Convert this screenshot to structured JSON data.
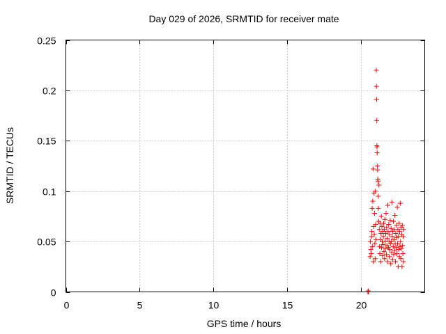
{
  "chart_data": {
    "type": "scatter",
    "title": "Day 029 of 2026, SRMTID for receiver mate",
    "xlabel": "GPS time / hours",
    "ylabel": "SRMTID / TECUs",
    "xlim": [
      0,
      24.3
    ],
    "ylim": [
      0,
      0.25
    ],
    "xticks": [
      0,
      5,
      10,
      15,
      20
    ],
    "xtick_labels": [
      "0",
      "5",
      "10",
      "15",
      "20"
    ],
    "yticks": [
      0,
      0.05,
      0.1,
      0.15,
      0.2,
      0.25
    ],
    "ytick_labels": [
      "0",
      "0.05",
      "0.1",
      "0.15",
      "0.2",
      "0.25"
    ],
    "grid": true,
    "marker": "+",
    "series": [
      {
        "name": "SRMTID",
        "color": "#ff0000",
        "points": [
          [
            20.45,
            0.0
          ],
          [
            20.47,
            0.001
          ],
          [
            20.5,
            0.0
          ],
          [
            20.6,
            0.035
          ],
          [
            20.62,
            0.05
          ],
          [
            20.65,
            0.042
          ],
          [
            20.68,
            0.038
          ],
          [
            20.7,
            0.055
          ],
          [
            20.72,
            0.06
          ],
          [
            20.74,
            0.083
          ],
          [
            20.75,
            0.045
          ],
          [
            20.78,
            0.09
          ],
          [
            20.8,
            0.122
          ],
          [
            20.82,
            0.03
          ],
          [
            20.84,
            0.065
          ],
          [
            20.86,
            0.098
          ],
          [
            20.88,
            0.057
          ],
          [
            20.9,
            0.078
          ],
          [
            20.92,
            0.048
          ],
          [
            20.94,
            0.033
          ],
          [
            20.96,
            0.1
          ],
          [
            20.98,
            0.067
          ],
          [
            21.0,
            0.052
          ],
          [
            21.02,
            0.22
          ],
          [
            21.03,
            0.204
          ],
          [
            21.04,
            0.191
          ],
          [
            21.05,
            0.17
          ],
          [
            21.06,
            0.145
          ],
          [
            21.07,
            0.144
          ],
          [
            21.08,
            0.138
          ],
          [
            21.1,
            0.125
          ],
          [
            21.11,
            0.121
          ],
          [
            21.12,
            0.112
          ],
          [
            21.14,
            0.11
          ],
          [
            21.15,
            0.095
          ],
          [
            21.16,
            0.083
          ],
          [
            21.18,
            0.07
          ],
          [
            21.2,
            0.106
          ],
          [
            21.22,
            0.062
          ],
          [
            21.24,
            0.045
          ],
          [
            21.26,
            0.038
          ],
          [
            21.28,
            0.068
          ],
          [
            21.3,
            0.052
          ],
          [
            21.32,
            0.03
          ],
          [
            21.34,
            0.058
          ],
          [
            21.36,
            0.075
          ],
          [
            21.38,
            0.044
          ],
          [
            21.4,
            0.065
          ],
          [
            21.42,
            0.05
          ],
          [
            21.44,
            0.036
          ],
          [
            21.46,
            0.06
          ],
          [
            21.48,
            0.047
          ],
          [
            21.5,
            0.055
          ],
          [
            21.52,
            0.068
          ],
          [
            21.54,
            0.04
          ],
          [
            21.56,
            0.062
          ],
          [
            21.58,
            0.033
          ],
          [
            21.6,
            0.072
          ],
          [
            21.62,
            0.05
          ],
          [
            21.64,
            0.043
          ],
          [
            21.66,
            0.058
          ],
          [
            21.68,
            0.078
          ],
          [
            21.7,
            0.037
          ],
          [
            21.72,
            0.064
          ],
          [
            21.74,
            0.046
          ],
          [
            21.76,
            0.053
          ],
          [
            21.78,
            0.03
          ],
          [
            21.8,
            0.086
          ],
          [
            21.82,
            0.06
          ],
          [
            21.84,
            0.044
          ],
          [
            21.86,
            0.067
          ],
          [
            21.88,
            0.05
          ],
          [
            21.9,
            0.035
          ],
          [
            21.92,
            0.057
          ],
          [
            21.94,
            0.042
          ],
          [
            21.96,
            0.071
          ],
          [
            21.98,
            0.048
          ],
          [
            22.0,
            0.028
          ],
          [
            22.02,
            0.063
          ],
          [
            22.04,
            0.05
          ],
          [
            22.06,
            0.039
          ],
          [
            22.08,
            0.089
          ],
          [
            22.1,
            0.055
          ],
          [
            22.12,
            0.032
          ],
          [
            22.14,
            0.06
          ],
          [
            22.16,
            0.045
          ],
          [
            22.18,
            0.07
          ],
          [
            22.2,
            0.037
          ],
          [
            22.22,
            0.052
          ],
          [
            22.24,
            0.062
          ],
          [
            22.26,
            0.041
          ],
          [
            22.28,
            0.076
          ],
          [
            22.3,
            0.048
          ],
          [
            22.32,
            0.03
          ],
          [
            22.34,
            0.058
          ],
          [
            22.36,
            0.044
          ],
          [
            22.38,
            0.066
          ],
          [
            22.4,
            0.054
          ],
          [
            22.42,
            0.038
          ],
          [
            22.44,
            0.084
          ],
          [
            22.46,
            0.048
          ],
          [
            22.48,
            0.062
          ],
          [
            22.5,
            0.025
          ],
          [
            22.52,
            0.055
          ],
          [
            22.54,
            0.042
          ],
          [
            22.56,
            0.068
          ],
          [
            22.58,
            0.035
          ],
          [
            22.6,
            0.06
          ],
          [
            22.62,
            0.045
          ],
          [
            22.64,
            0.088
          ],
          [
            22.66,
            0.05
          ],
          [
            22.68,
            0.033
          ],
          [
            22.7,
            0.064
          ],
          [
            22.72,
            0.043
          ],
          [
            22.74,
            0.057
          ],
          [
            22.76,
            0.025
          ],
          [
            22.78,
            0.066
          ],
          [
            22.8,
            0.046
          ],
          [
            22.82,
            0.038
          ],
          [
            22.84,
            0.055
          ],
          [
            22.86,
            0.03
          ],
          [
            22.88,
            0.062
          ]
        ]
      }
    ]
  }
}
